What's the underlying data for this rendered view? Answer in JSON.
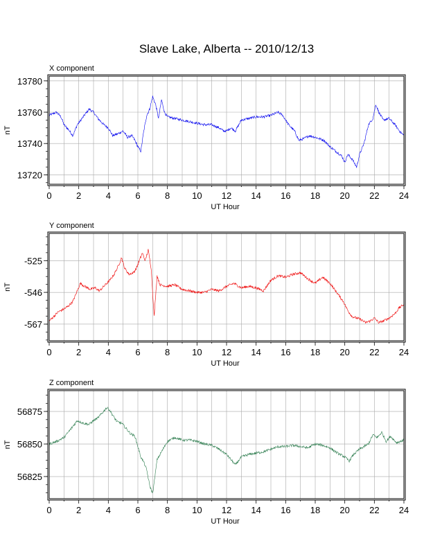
{
  "title": "Slave Lake, Alberta -- 2010/12/13",
  "chart_data": [
    {
      "type": "line",
      "title": "X component",
      "xlabel": "UT Hour",
      "ylabel": "nT",
      "xlim": [
        0,
        24
      ],
      "ylim": [
        13714,
        13783
      ],
      "xticks": [
        0,
        2,
        4,
        6,
        8,
        10,
        12,
        14,
        16,
        18,
        20,
        22,
        24
      ],
      "yticks": [
        13720,
        13740,
        13760,
        13780
      ],
      "grid": true,
      "color": "#0000ee",
      "series": [
        {
          "x": [
            0,
            0.5,
            0.8,
            1.0,
            1.3,
            1.6,
            1.9,
            2.3,
            2.7,
            3.0,
            3.3,
            3.7,
            4.0,
            4.3,
            4.6,
            5.0,
            5.3,
            5.6,
            5.8,
            6.0,
            6.2,
            6.4,
            6.6,
            6.8,
            7.0,
            7.2,
            7.4,
            7.6,
            7.8,
            8.0,
            8.5,
            9.0,
            9.5,
            10.0,
            10.5,
            11.0,
            11.5,
            11.8,
            12.0,
            12.3,
            12.6,
            13.0,
            13.5,
            14.0,
            14.5,
            15.0,
            15.5,
            15.8,
            16.2,
            16.6,
            16.9,
            17.2,
            17.6,
            18.0,
            18.3,
            18.6,
            19.0,
            19.4,
            19.8,
            20.0,
            20.2,
            20.5,
            20.8,
            21.0,
            21.3,
            21.6,
            21.9,
            22.1,
            22.3,
            22.6,
            23.0,
            23.4,
            23.7,
            24.0
          ],
          "y": [
            13758,
            13760,
            13757,
            13752,
            13749,
            13745,
            13752,
            13757,
            13762,
            13760,
            13756,
            13752,
            13750,
            13745,
            13746,
            13748,
            13744,
            13745,
            13742,
            13738,
            13735,
            13748,
            13758,
            13762,
            13770,
            13765,
            13756,
            13768,
            13760,
            13757,
            13756,
            13755,
            13754,
            13753,
            13752,
            13752,
            13750,
            13748,
            13748,
            13750,
            13748,
            13755,
            13756,
            13757,
            13757,
            13758,
            13760,
            13758,
            13752,
            13748,
            13742,
            13743,
            13745,
            13744,
            13743,
            13742,
            13738,
            13735,
            13732,
            13728,
            13733,
            13730,
            13725,
            13733,
            13740,
            13752,
            13756,
            13765,
            13760,
            13755,
            13756,
            13752,
            13748,
            13745
          ]
        }
      ]
    },
    {
      "type": "line",
      "title": "Y component",
      "xlabel": "UT Hour",
      "ylabel": "nT",
      "xlim": [
        0,
        24
      ],
      "ylim": [
        -578,
        -507
      ],
      "xticks": [
        0,
        2,
        4,
        6,
        8,
        10,
        12,
        14,
        16,
        18,
        20,
        22,
        24
      ],
      "yticks": [
        -567,
        -546,
        -525
      ],
      "grid": true,
      "color": "#ee0000",
      "series": [
        {
          "x": [
            0,
            0.3,
            0.6,
            1.0,
            1.3,
            1.6,
            1.9,
            2.1,
            2.4,
            2.8,
            3.1,
            3.4,
            3.8,
            4.1,
            4.4,
            4.7,
            4.9,
            5.1,
            5.4,
            5.7,
            5.9,
            6.1,
            6.3,
            6.5,
            6.7,
            6.9,
            7.1,
            7.3,
            7.5,
            8.0,
            8.5,
            9.0,
            9.5,
            10.0,
            10.5,
            11.0,
            11.5,
            12.0,
            12.5,
            13.0,
            13.5,
            14.0,
            14.5,
            15.0,
            15.5,
            16.0,
            16.5,
            17.0,
            17.5,
            18.0,
            18.5,
            19.0,
            19.3,
            19.6,
            19.9,
            20.2,
            20.5,
            20.8,
            21.1,
            21.4,
            21.7,
            22.0,
            22.3,
            22.6,
            23.0,
            23.4,
            23.7,
            24.0
          ],
          "y": [
            -565,
            -562,
            -559,
            -557,
            -555,
            -552,
            -545,
            -540,
            -542,
            -544,
            -543,
            -545,
            -541,
            -538,
            -534,
            -528,
            -523,
            -530,
            -534,
            -533,
            -530,
            -525,
            -520,
            -525,
            -518,
            -530,
            -562,
            -535,
            -541,
            -542,
            -541,
            -544,
            -545,
            -546,
            -546,
            -544,
            -545,
            -542,
            -540,
            -543,
            -542,
            -543,
            -545,
            -538,
            -535,
            -536,
            -534,
            -533,
            -537,
            -540,
            -536,
            -540,
            -544,
            -548,
            -552,
            -558,
            -562,
            -563,
            -564,
            -566,
            -565,
            -563,
            -566,
            -565,
            -563,
            -560,
            -556,
            -554
          ]
        }
      ]
    },
    {
      "type": "line",
      "title": "Z component",
      "xlabel": "UT Hour",
      "ylabel": "nT",
      "xlim": [
        0,
        24
      ],
      "ylim": [
        56808,
        56891
      ],
      "xticks": [
        0,
        2,
        4,
        6,
        8,
        10,
        12,
        14,
        16,
        18,
        20,
        22,
        24
      ],
      "yticks": [
        56825,
        56850,
        56875
      ],
      "grid": true,
      "color": "#2e7d4f",
      "series": [
        {
          "x": [
            0,
            0.5,
            1.0,
            1.5,
            1.9,
            2.3,
            2.7,
            3.0,
            3.3,
            3.6,
            3.9,
            4.1,
            4.3,
            4.6,
            4.9,
            5.2,
            5.5,
            5.8,
            6.0,
            6.2,
            6.4,
            6.6,
            6.8,
            7.0,
            7.1,
            7.3,
            7.6,
            8.0,
            8.5,
            9.0,
            9.5,
            10.0,
            10.5,
            11.0,
            11.5,
            12.0,
            12.3,
            12.6,
            13.0,
            13.5,
            14.0,
            14.5,
            15.0,
            15.5,
            16.0,
            16.5,
            17.0,
            17.5,
            18.0,
            18.5,
            19.0,
            19.5,
            20.0,
            20.3,
            20.6,
            21.0,
            21.3,
            21.6,
            21.9,
            22.2,
            22.5,
            22.8,
            23.1,
            23.5,
            24.0
          ],
          "y": [
            56850,
            56852,
            56855,
            56862,
            56868,
            56866,
            56865,
            56868,
            56870,
            56874,
            56878,
            56876,
            56872,
            56867,
            56866,
            56862,
            56858,
            56856,
            56848,
            56840,
            56836,
            56830,
            56818,
            56812,
            56820,
            56838,
            56844,
            56852,
            56855,
            56853,
            56853,
            56852,
            56850,
            56849,
            56846,
            56842,
            56838,
            56834,
            56840,
            56842,
            56843,
            56844,
            56846,
            56848,
            56848,
            56849,
            56848,
            56847,
            56850,
            56849,
            56847,
            56843,
            56840,
            56837,
            56842,
            56846,
            56848,
            56850,
            56857,
            56855,
            56859,
            56852,
            56856,
            56851,
            56853
          ]
        }
      ]
    }
  ]
}
